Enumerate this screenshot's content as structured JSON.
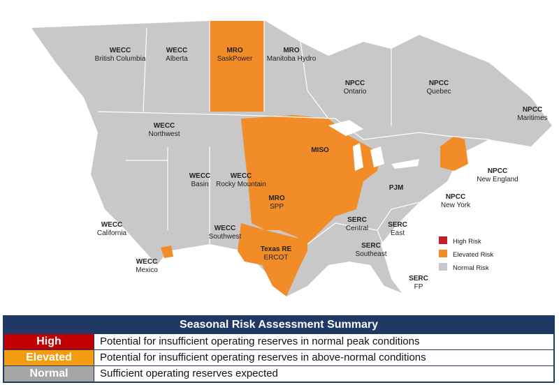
{
  "map": {
    "risk_colors": {
      "normal": "#c8c8c8",
      "elevated": "#f28c28"
    },
    "labels": [
      {
        "entity": "WECC",
        "name": "British Columbia"
      },
      {
        "entity": "WECC",
        "name": "Alberta"
      },
      {
        "entity": "MRO",
        "name": "SaskPower"
      },
      {
        "entity": "MRO",
        "name": "Manitoba Hydro"
      },
      {
        "entity": "NPCC",
        "name": "Ontario"
      },
      {
        "entity": "NPCC",
        "name": "Quebec"
      },
      {
        "entity": "NPCC",
        "name": "Maritimes"
      },
      {
        "entity": "WECC",
        "name": "Northwest"
      },
      {
        "entity": "MISO"
      },
      {
        "entity": "NPCC",
        "name": "New England"
      },
      {
        "entity": "WECC",
        "name": "Basin"
      },
      {
        "entity": "WECC",
        "name": "Rocky Mountain"
      },
      {
        "entity": "MRO",
        "name": "SPP"
      },
      {
        "entity": "PJM"
      },
      {
        "entity": "NPCC",
        "name": "New York"
      },
      {
        "entity": "SERC",
        "name": "Central"
      },
      {
        "entity": "SERC",
        "name": "East"
      },
      {
        "entity": "WECC",
        "name": "California"
      },
      {
        "entity": "WECC",
        "name": "Southwest"
      },
      {
        "entity": "SERC",
        "name": "Southeast"
      },
      {
        "entity": "Texas RE",
        "name": "ERCOT"
      },
      {
        "entity": "WECC",
        "name": "Mexico"
      },
      {
        "entity": "SERC",
        "name": "FP"
      }
    ],
    "legend": [
      {
        "label": "High Risk",
        "color": "#c0202a"
      },
      {
        "label": "Elevated Risk",
        "color": "#f28c28"
      },
      {
        "label": "Normal Risk",
        "color": "#c8c8c8"
      }
    ]
  },
  "summary": {
    "title": "Seasonal Risk Assessment Summary",
    "rows": [
      {
        "level": "High",
        "color": "#c00000",
        "description": "Potential for insufficient operating reserves in normal peak conditions"
      },
      {
        "level": "Elevated",
        "color": "#f39c12",
        "description": "Potential for insufficient operating reserves in above-normal conditions"
      },
      {
        "level": "Normal",
        "color": "#a6a6a6",
        "description": "Sufficient operating reserves expected"
      }
    ]
  }
}
